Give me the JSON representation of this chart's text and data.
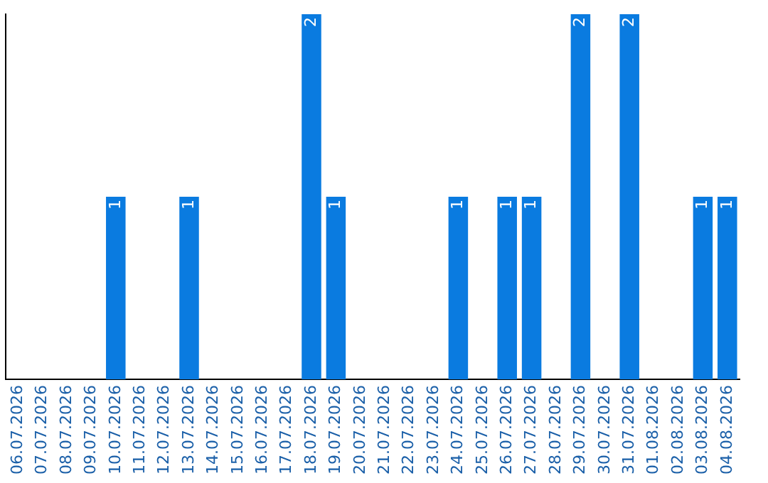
{
  "chart_data": {
    "type": "bar",
    "categories": [
      "06.07.2026",
      "07.07.2026",
      "08.07.2026",
      "09.07.2026",
      "10.07.2026",
      "11.07.2026",
      "12.07.2026",
      "13.07.2026",
      "14.07.2026",
      "15.07.2026",
      "16.07.2026",
      "17.07.2026",
      "18.07.2026",
      "19.07.2026",
      "20.07.2026",
      "21.07.2026",
      "22.07.2026",
      "23.07.2026",
      "24.07.2026",
      "25.07.2026",
      "26.07.2026",
      "27.07.2026",
      "28.07.2026",
      "29.07.2026",
      "30.07.2026",
      "31.07.2026",
      "01.08.2026",
      "02.08.2026",
      "03.08.2026",
      "04.08.2026"
    ],
    "values": [
      0,
      0,
      0,
      0,
      1,
      0,
      0,
      1,
      0,
      0,
      0,
      0,
      2,
      1,
      0,
      0,
      0,
      0,
      1,
      0,
      1,
      1,
      0,
      2,
      0,
      2,
      0,
      0,
      1,
      1
    ],
    "value_labels": [
      null,
      null,
      null,
      null,
      "1",
      null,
      null,
      "1",
      null,
      null,
      null,
      null,
      "2",
      "1",
      null,
      null,
      null,
      null,
      "1",
      null,
      "1",
      "1",
      null,
      "2",
      null,
      "2",
      null,
      null,
      "1",
      "1"
    ],
    "color": "#0a7be0",
    "grid": false,
    "legend": false,
    "tick_labels": "x"
  }
}
